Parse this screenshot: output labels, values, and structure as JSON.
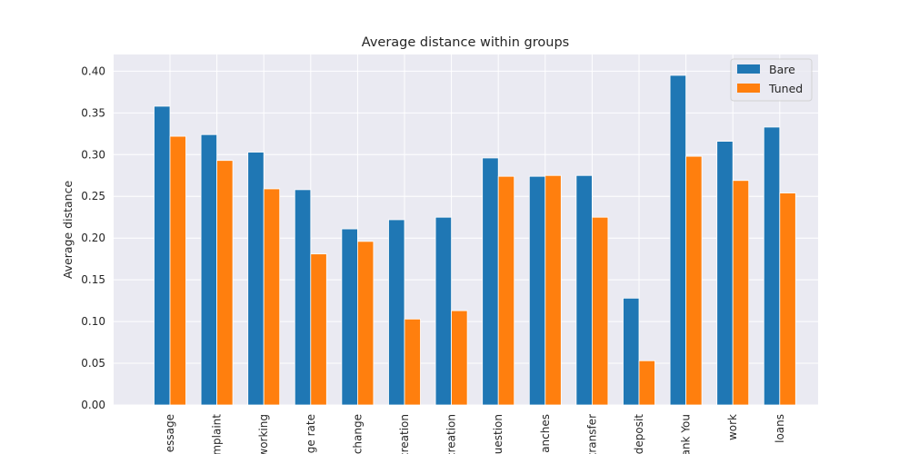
{
  "chart_data": {
    "type": "bar",
    "title": "Average distance within groups",
    "xlabel": "",
    "ylabel": "Average distance",
    "ylim": [
      0,
      0.42
    ],
    "yticks": [
      "0.00",
      "0.05",
      "0.10",
      "0.15",
      "0.20",
      "0.25",
      "0.30",
      "0.35",
      "0.40"
    ],
    "categories": [
      "essage",
      "mplaint",
      "working",
      "ge rate",
      "change",
      "creation",
      "creation",
      "uestion",
      "anches",
      "transfer",
      "deposit",
      "ank You",
      "work",
      "loans"
    ],
    "series": [
      {
        "name": "Bare",
        "color": "#1f77b4",
        "values": [
          0.358,
          0.324,
          0.303,
          0.258,
          0.211,
          0.222,
          0.225,
          0.296,
          0.274,
          0.275,
          0.128,
          0.395,
          0.316,
          0.333
        ]
      },
      {
        "name": "Tuned",
        "color": "#ff7f0e",
        "values": [
          0.322,
          0.293,
          0.259,
          0.181,
          0.196,
          0.103,
          0.113,
          0.274,
          0.275,
          0.225,
          0.053,
          0.298,
          0.269,
          0.254
        ]
      }
    ],
    "grid": true,
    "legend": "top-right"
  }
}
